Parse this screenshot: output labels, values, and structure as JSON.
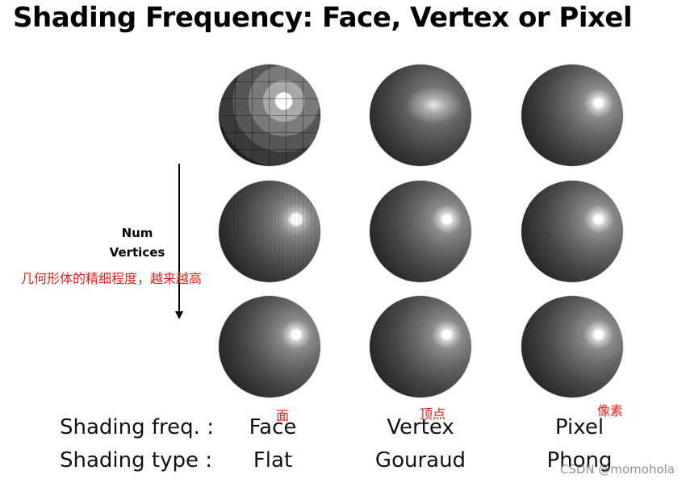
{
  "title": "Shading Frequency: Face, Vertex or Pixel",
  "num_vertices_label": "Num Vertices",
  "annotations": {
    "geometry_detail": "几何形体的精细程度，越来越高",
    "face_cn": "面",
    "vertex_cn": "顶点",
    "pixel_cn": "像素"
  },
  "table": {
    "freq_label": "Shading freq. :",
    "type_label": "Shading type :",
    "columns": [
      {
        "freq": "Face",
        "type": "Flat"
      },
      {
        "freq": "Vertex",
        "type": "Gouraud"
      },
      {
        "freq": "Pixel",
        "type": "Phong"
      }
    ]
  },
  "watermark": "CSDN @momohola"
}
